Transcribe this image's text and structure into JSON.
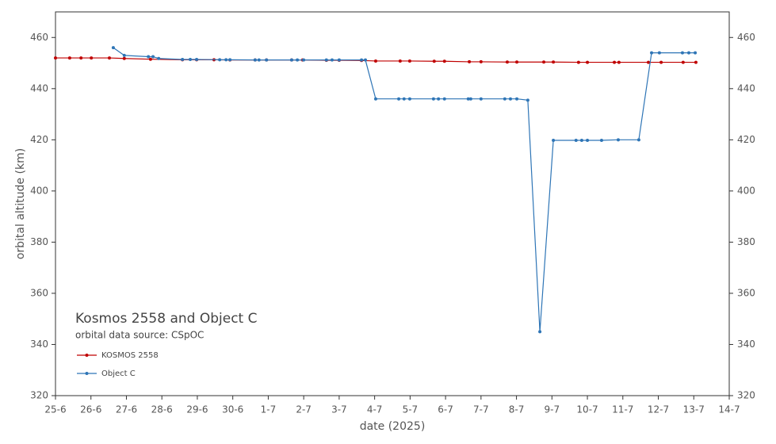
{
  "chart_data": {
    "type": "line",
    "title": "Kosmos 2558 and Object C",
    "subtitle": "orbital data source:  CSpOC",
    "x_label": "date (2025)",
    "y_label": "orbital altitude (km)",
    "xlim": [
      25,
      44
    ],
    "xticks": [
      {
        "value": 25,
        "label": "25-6"
      },
      {
        "value": 26,
        "label": "26-6"
      },
      {
        "value": 27,
        "label": "27-6"
      },
      {
        "value": 28,
        "label": "28-6"
      },
      {
        "value": 29,
        "label": "29-6"
      },
      {
        "value": 30,
        "label": "30-6"
      },
      {
        "value": 31,
        "label": "1-7"
      },
      {
        "value": 32,
        "label": "2-7"
      },
      {
        "value": 33,
        "label": "3-7"
      },
      {
        "value": 34,
        "label": "4-7"
      },
      {
        "value": 35,
        "label": "5-7"
      },
      {
        "value": 36,
        "label": "6-7"
      },
      {
        "value": 37,
        "label": "7-7"
      },
      {
        "value": 38,
        "label": "8-7"
      },
      {
        "value": 39,
        "label": "9-7"
      },
      {
        "value": 40,
        "label": "10-7"
      },
      {
        "value": 41,
        "label": "11-7"
      },
      {
        "value": 42,
        "label": "12-7"
      },
      {
        "value": 43,
        "label": "13-7"
      },
      {
        "value": 44,
        "label": "14-7"
      }
    ],
    "ylim": [
      320,
      470
    ],
    "yticks": [
      320,
      340,
      360,
      380,
      400,
      420,
      440,
      460
    ],
    "series": [
      {
        "name": "KOSMOS 2558",
        "color": "#c00000",
        "x": [
          25,
          25.4,
          25.72,
          26.01,
          26.52,
          26.94,
          27.68,
          28.58,
          28.98,
          29.47,
          29.92,
          30.63,
          30.95,
          31.66,
          31.97,
          32.64,
          33.0,
          33.63,
          34.03,
          34.72,
          34.99,
          35.68,
          35.97,
          36.67,
          37.0,
          37.74,
          38.01,
          38.77,
          39.04,
          39.75,
          40.0,
          40.76,
          40.89,
          41.72,
          42.08,
          42.7,
          43.06
        ],
        "values": [
          452,
          452,
          452,
          452,
          452,
          451.8,
          451.5,
          451.3,
          451.3,
          451.3,
          451.2,
          451.2,
          451.2,
          451.2,
          451.2,
          451.1,
          451.1,
          451,
          450.8,
          450.8,
          450.8,
          450.7,
          450.7,
          450.5,
          450.5,
          450.4,
          450.4,
          450.4,
          450.4,
          450.3,
          450.3,
          450.3,
          450.3,
          450.3,
          450.3,
          450.3,
          450.3
        ]
      },
      {
        "name": "Object C",
        "color": "#2e75b6",
        "x": [
          26.63,
          26.94,
          27.62,
          27.75,
          27.91,
          28.58,
          28.8,
          28.98,
          29.63,
          29.81,
          29.92,
          30.63,
          30.74,
          30.95,
          31.66,
          31.82,
          32.0,
          32.64,
          32.8,
          33.0,
          33.63,
          33.74,
          34.03,
          34.68,
          34.83,
          34.99,
          35.66,
          35.8,
          35.97,
          36.64,
          36.71,
          37.0,
          37.67,
          37.83,
          38.01,
          38.32,
          38.66,
          39.04,
          39.68,
          39.84,
          40.0,
          40.4,
          40.87,
          41.45,
          41.81,
          42.03,
          42.68,
          42.86,
          43.04
        ],
        "values": [
          456,
          453,
          452.5,
          452.5,
          451.8,
          451.4,
          451.4,
          451.4,
          451.3,
          451.3,
          451.3,
          451.2,
          451.2,
          451.2,
          451.2,
          451.2,
          451.2,
          451.2,
          451.2,
          451.2,
          451.2,
          451.2,
          436,
          436,
          436,
          436,
          436,
          436,
          436,
          436,
          436,
          436,
          436,
          436,
          436,
          435.5,
          345,
          419.8,
          419.8,
          419.8,
          419.8,
          419.8,
          420,
          420,
          454,
          454,
          454,
          454,
          454
        ]
      }
    ]
  }
}
